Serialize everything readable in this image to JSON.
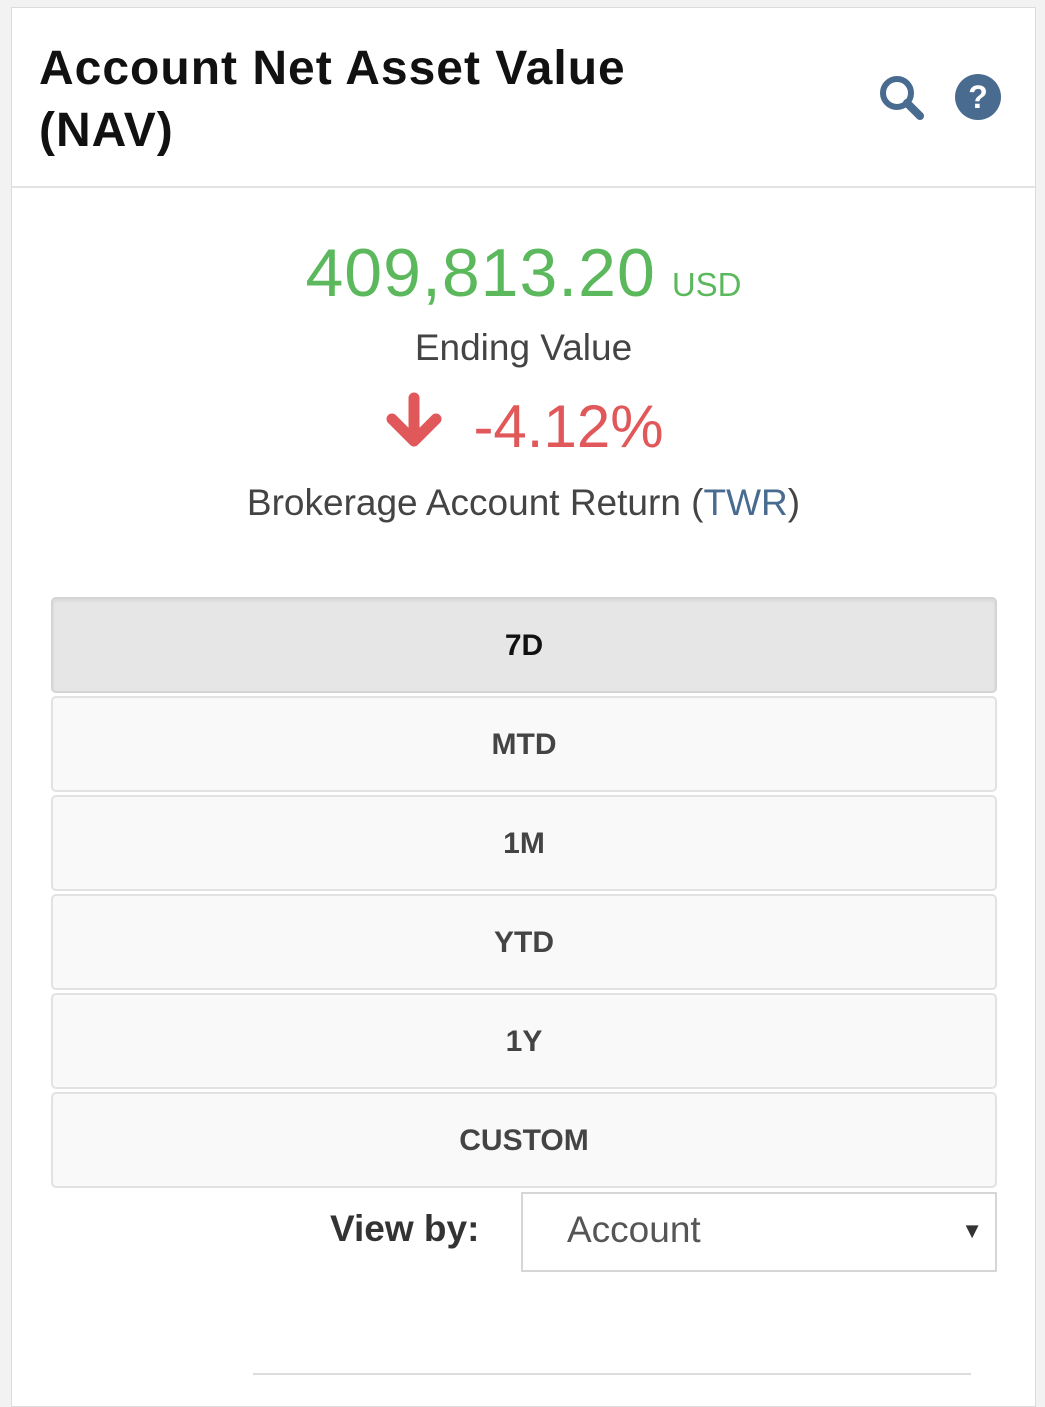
{
  "header": {
    "title": "Account Net Asset Value (NAV)",
    "icons": [
      "search-icon",
      "help-icon"
    ]
  },
  "summary": {
    "ending_value": "409,813.20",
    "currency": "USD",
    "ending_label": "Ending Value",
    "return_value": "-4.12%",
    "return_direction_icon": "arrow-down-icon",
    "return_label_prefix": "Brokerage Account Return (",
    "return_label_link": "TWR",
    "return_label_suffix": ")"
  },
  "periods": {
    "items": [
      "7D",
      "MTD",
      "1M",
      "YTD",
      "1Y",
      "CUSTOM"
    ],
    "selected": "7D"
  },
  "view_by": {
    "label": "View by:",
    "selected": "Account"
  },
  "colors": {
    "positive_value": "#5cb85c",
    "negative_return": "#e0585a",
    "icon_blue": "#4a6b90",
    "link": "#4a6b90"
  }
}
